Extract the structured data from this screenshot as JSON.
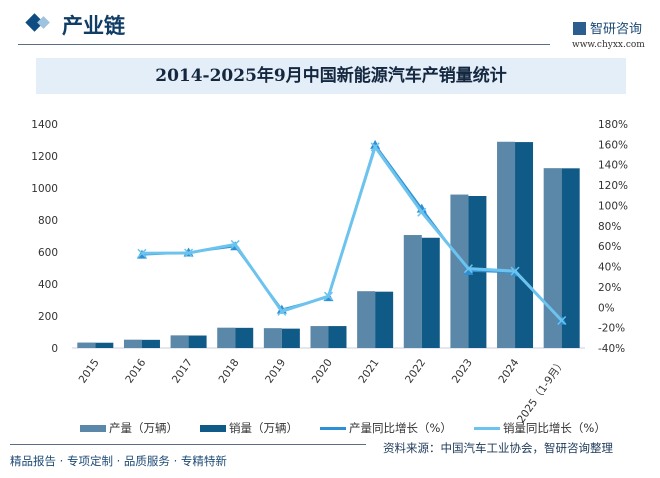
{
  "header": {
    "section": "产业链",
    "brand": "智研咨询",
    "url": "www.chyxx.com"
  },
  "chart_data": {
    "type": "bar+line",
    "title": "2014-2025年9月中国新能源汽车产销量统计",
    "categories": [
      "2015",
      "2016",
      "2017",
      "2018",
      "2019",
      "2020",
      "2021",
      "2022",
      "2023",
      "2024",
      "2025（1-9月）"
    ],
    "left_axis": {
      "ylim": [
        0,
        1400
      ],
      "ticks": [
        0,
        200,
        400,
        600,
        800,
        1000,
        1200,
        1400
      ]
    },
    "right_axis": {
      "ylim": [
        -40,
        180
      ],
      "ticks": [
        "-40%",
        "-20%",
        "0%",
        "20%",
        "40%",
        "60%",
        "80%",
        "100%",
        "120%",
        "140%",
        "160%",
        "180%"
      ]
    },
    "series": [
      {
        "name": "产量（万辆）",
        "type": "bar",
        "axis": "left",
        "color": "#5b87a8",
        "values": [
          34,
          52,
          79,
          127,
          124,
          137,
          355,
          706,
          959,
          1289,
          1124
        ]
      },
      {
        "name": "销量（万辆）",
        "type": "bar",
        "axis": "left",
        "color": "#0f5a87",
        "values": [
          33,
          51,
          78,
          126,
          121,
          137,
          352,
          689,
          950,
          1287,
          1123
        ]
      },
      {
        "name": "产量同比增长（%）",
        "type": "line",
        "axis": "right",
        "color": "#2e8fd4",
        "marker": "triangle",
        "values": [
          null,
          51.7,
          53.8,
          59.9,
          -2.3,
          10.0,
          159.5,
          96.9,
          35.8,
          34.4,
          -13
        ]
      },
      {
        "name": "销量同比增长（%）",
        "type": "line",
        "axis": "right",
        "color": "#6cc4ee",
        "marker": "x",
        "values": [
          null,
          53.0,
          53.3,
          61.7,
          -4.0,
          10.9,
          157.5,
          93.4,
          37.9,
          35.5,
          -13
        ]
      }
    ],
    "legend": "bottom"
  },
  "footer": {
    "slogan": "精品报告 · 专项定制 · 品质服务 · 专精特新",
    "source": "资料来源：中国汽车工业协会，智研咨询整理"
  }
}
